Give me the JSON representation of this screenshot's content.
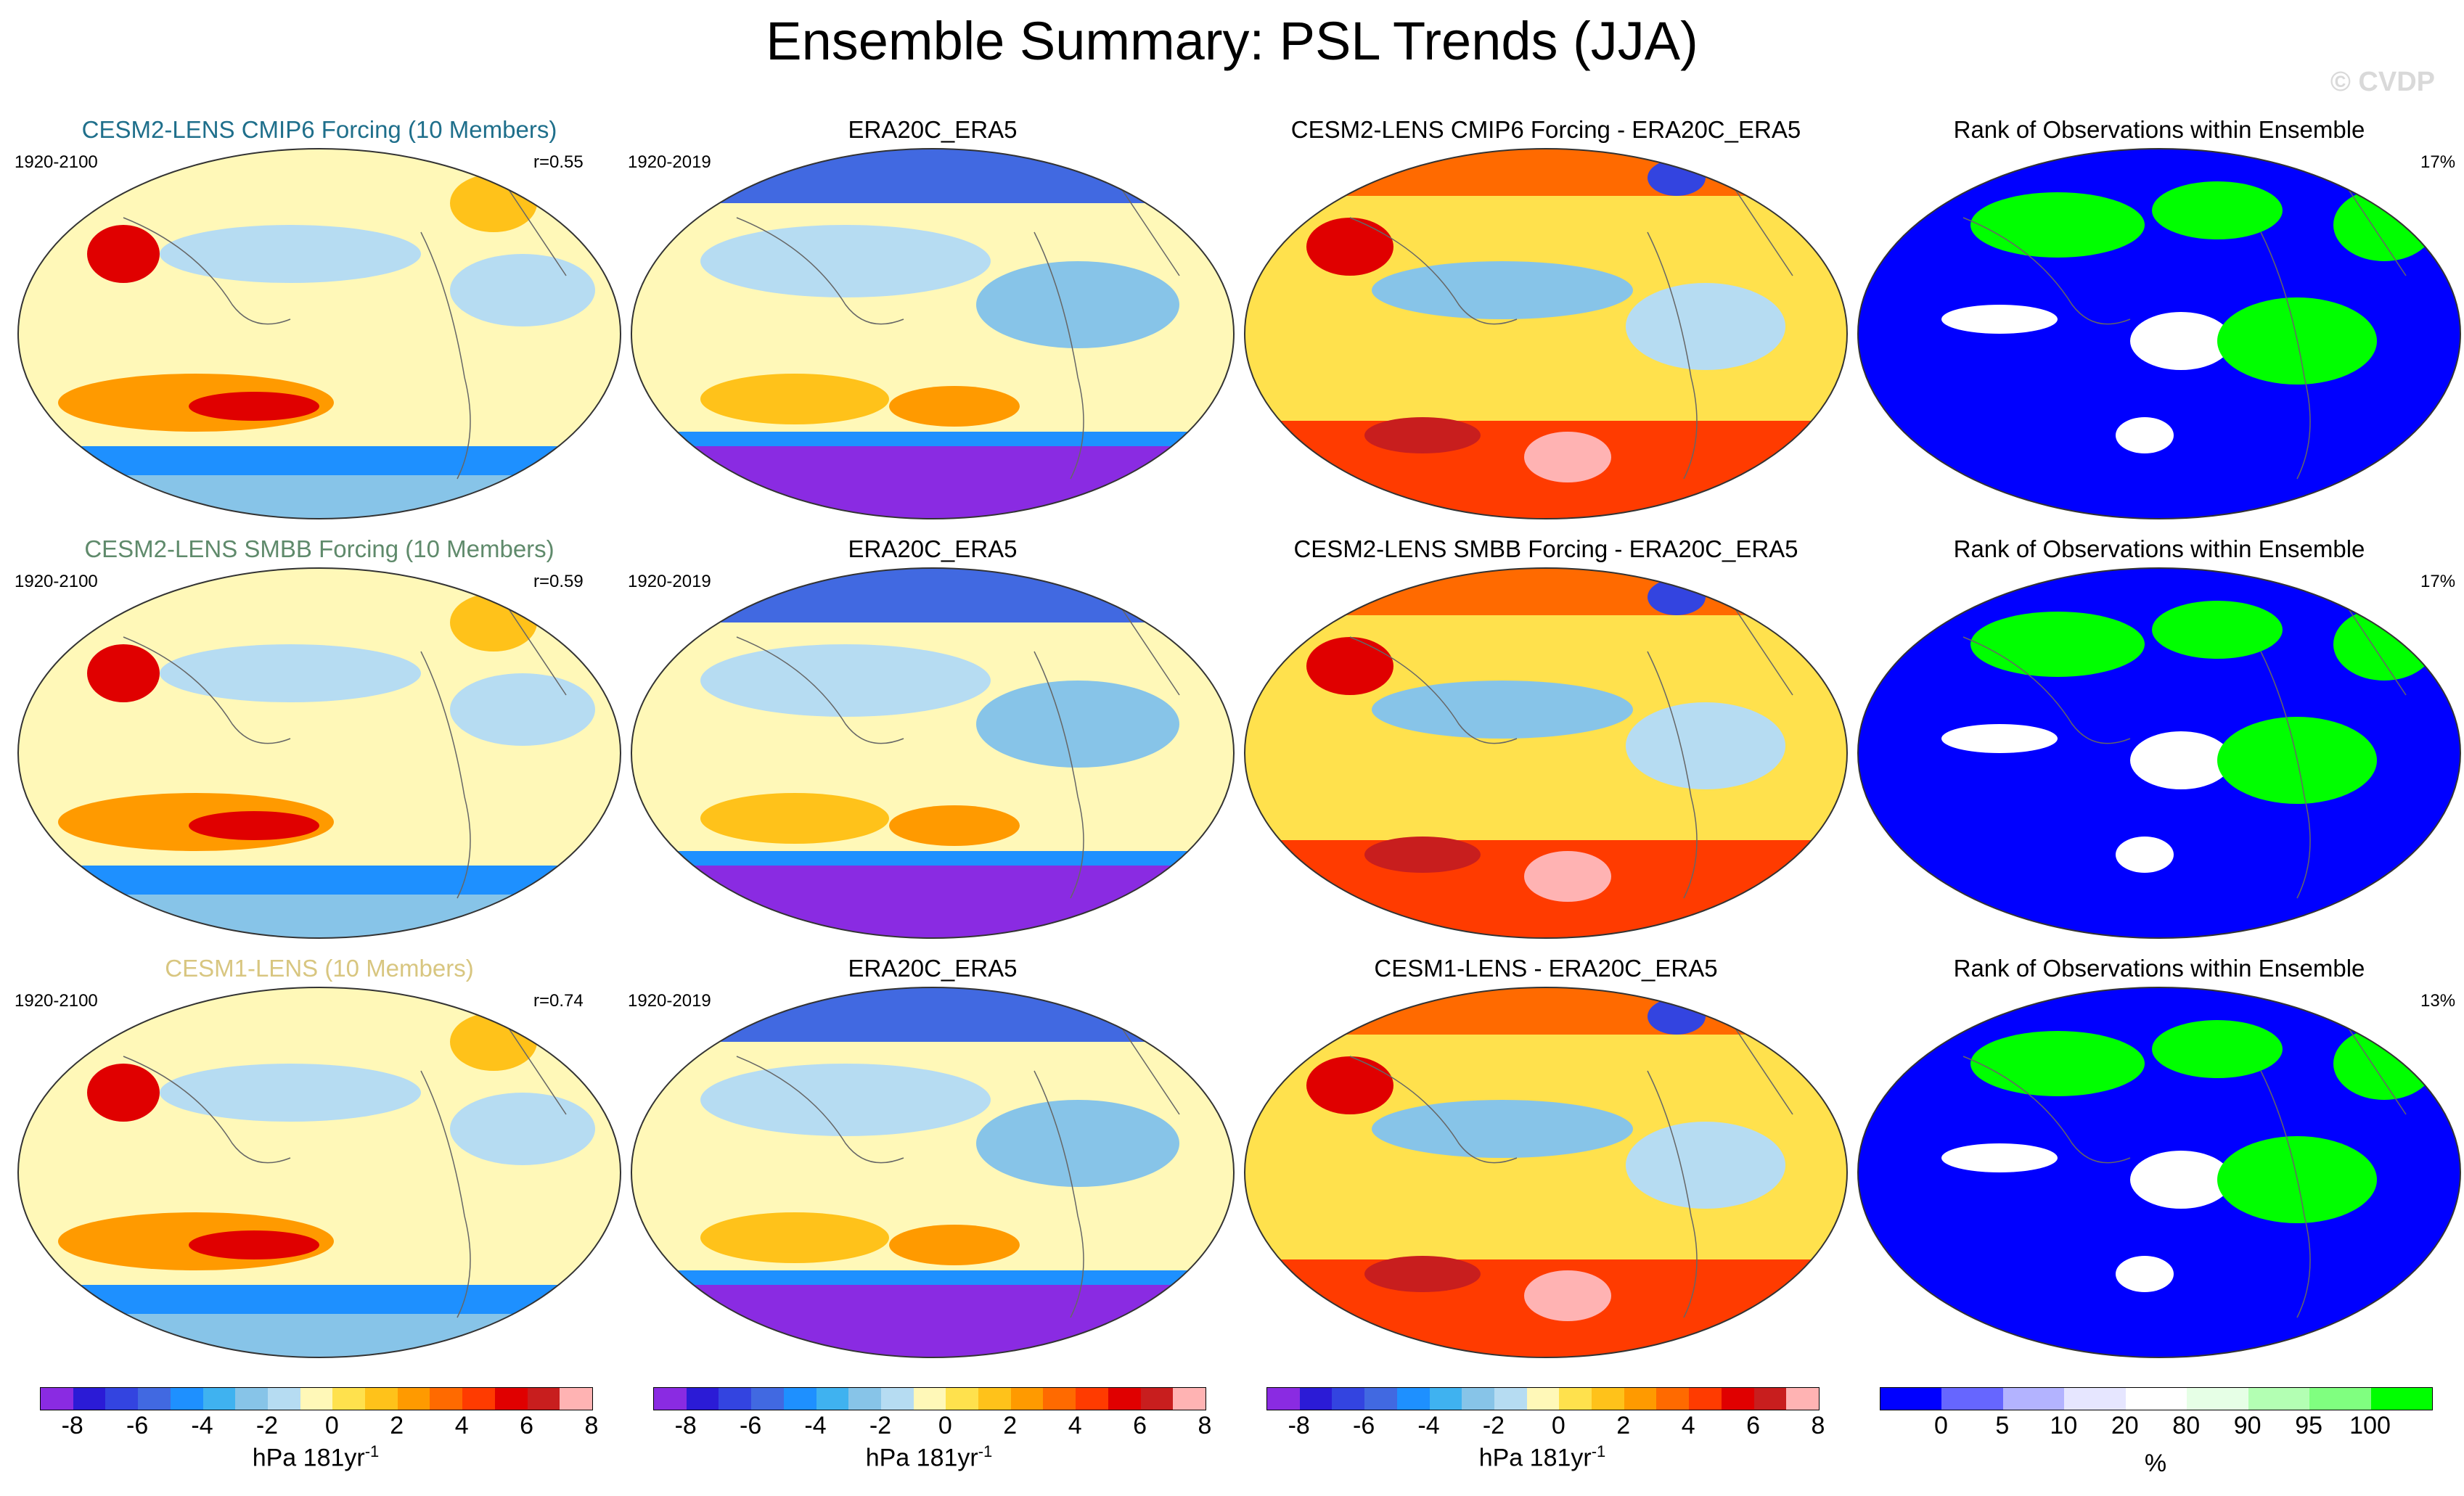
{
  "title": "Ensemble Summary: PSL Trends (JJA)",
  "copyright": "© CVDP",
  "rows": [
    {
      "model": {
        "title": "CESM2-LENS CMIP6 Forcing (10 Members)",
        "title_color": "#1f6f8b",
        "years": "1920-2100",
        "r": "r=0.55"
      },
      "obs": {
        "title": "ERA20C_ERA5",
        "years": "1920-2019"
      },
      "diff": {
        "title": "CESM2-LENS CMIP6 Forcing - ERA20C_ERA5"
      },
      "rank": {
        "title": "Rank of Observations within Ensemble",
        "pct": "17%"
      }
    },
    {
      "model": {
        "title": "CESM2-LENS SMBB Forcing (10 Members)",
        "title_color": "#5f8a6b",
        "years": "1920-2100",
        "r": "r=0.59"
      },
      "obs": {
        "title": "ERA20C_ERA5",
        "years": "1920-2019"
      },
      "diff": {
        "title": "CESM2-LENS SMBB Forcing - ERA20C_ERA5"
      },
      "rank": {
        "title": "Rank of Observations within Ensemble",
        "pct": "17%"
      }
    },
    {
      "model": {
        "title": "CESM1-LENS (10 Members)",
        "title_color": "#d8c680",
        "years": "1920-2100",
        "r": "r=0.74"
      },
      "obs": {
        "title": "ERA20C_ERA5",
        "years": "1920-2019"
      },
      "diff": {
        "title": "CESM1-LENS - ERA20C_ERA5"
      },
      "rank": {
        "title": "Rank of Observations within Ensemble",
        "pct": "13%"
      }
    }
  ],
  "colorbar": {
    "ticks": [
      "-8",
      "-6",
      "-4",
      "-2",
      "0",
      "2",
      "4",
      "6",
      "8"
    ],
    "unit": "hPa 181yr",
    "unit_sup": "-1",
    "colors": [
      "#8a2be2",
      "#2b1bd6",
      "#3344e0",
      "#4169e1",
      "#1e90ff",
      "#3fb2f0",
      "#87c4e8",
      "#b6dcf2",
      "#fff8b8",
      "#ffe14d",
      "#ffc21a",
      "#ff9a00",
      "#ff6a00",
      "#ff3b00",
      "#e00000",
      "#c81e1e",
      "#ffb3b3"
    ]
  },
  "rank_colorbar": {
    "ticks": [
      "0",
      "5",
      "10",
      "20",
      "80",
      "90",
      "95",
      "100"
    ],
    "unit": "%",
    "colors": [
      "#0000ff",
      "#6666ff",
      "#b3b3ff",
      "#e6e6ff",
      "#ffffff",
      "#e6ffe6",
      "#b3ffb3",
      "#80ff80",
      "#00ff00"
    ]
  }
}
